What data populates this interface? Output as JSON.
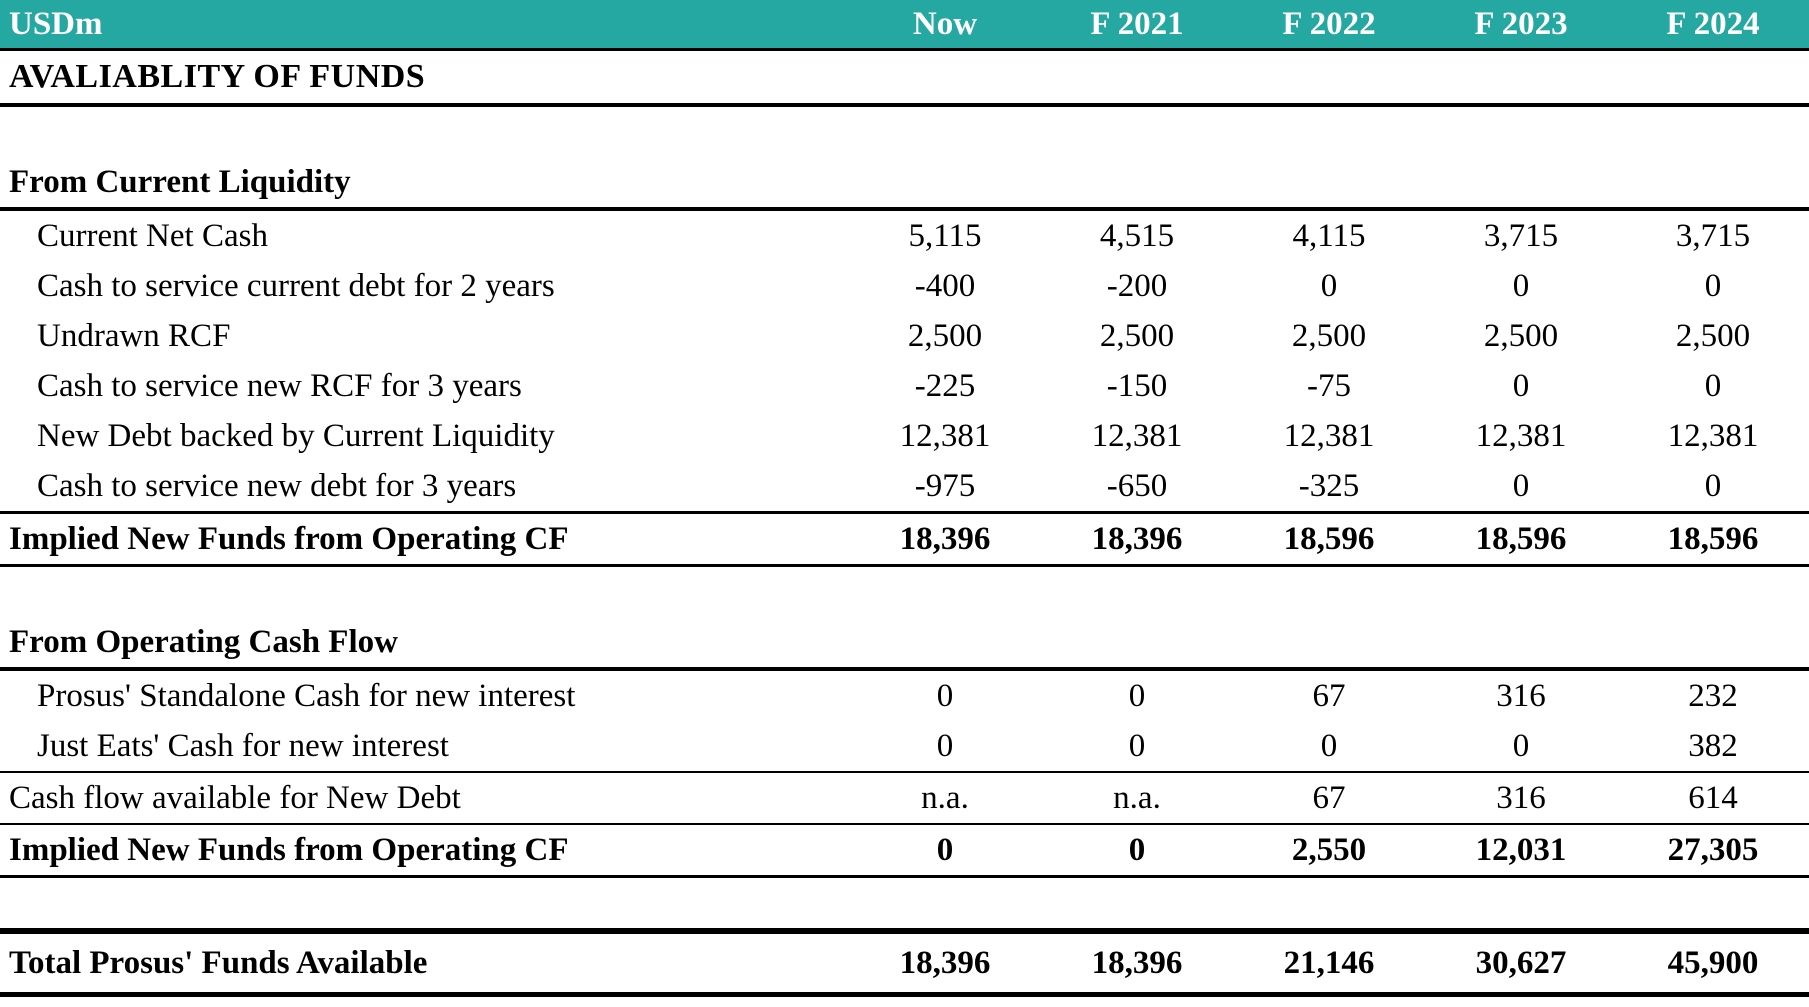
{
  "table": {
    "unit_label": "USDm",
    "columns": [
      "Now",
      "F 2021",
      "F 2022",
      "F 2023",
      "F 2024"
    ],
    "title": "AVALIABLITY OF FUNDS",
    "colors": {
      "header_bg": "#26a8a2",
      "header_text": "#ffffff",
      "body_text": "#000000",
      "border": "#000000"
    },
    "rows": [
      {
        "type": "blank"
      },
      {
        "type": "section",
        "label": "From Current Liquidity"
      },
      {
        "type": "data",
        "indent": 1,
        "label": "Current Net Cash",
        "values": [
          "5,115",
          "4,515",
          "4,115",
          "3,715",
          "3,715"
        ]
      },
      {
        "type": "data",
        "indent": 1,
        "label": "Cash to service current debt for 2 years",
        "values": [
          "-400",
          "-200",
          "0",
          "0",
          "0"
        ]
      },
      {
        "type": "data",
        "indent": 1,
        "label": "Undrawn RCF",
        "values": [
          "2,500",
          "2,500",
          "2,500",
          "2,500",
          "2,500"
        ]
      },
      {
        "type": "data",
        "indent": 1,
        "label": "Cash to service new RCF for 3 years",
        "values": [
          "-225",
          "-150",
          "-75",
          "0",
          "0"
        ]
      },
      {
        "type": "data",
        "indent": 1,
        "label": "New Debt backed by Current Liquidity",
        "values": [
          "12,381",
          "12,381",
          "12,381",
          "12,381",
          "12,381"
        ]
      },
      {
        "type": "data",
        "indent": 1,
        "label": "Cash to service new debt for 3 years",
        "values": [
          "-975",
          "-650",
          "-325",
          "0",
          "0"
        ],
        "border_bottom": "thin"
      },
      {
        "type": "subtotal",
        "label": "Implied New Funds from Operating CF",
        "values": [
          "18,396",
          "18,396",
          "18,596",
          "18,596",
          "18,596"
        ],
        "border_bottom": "thin"
      },
      {
        "type": "blank"
      },
      {
        "type": "section",
        "label": "From Operating Cash Flow"
      },
      {
        "type": "data",
        "indent": 1,
        "label": "Prosus' Standalone Cash for new interest",
        "values": [
          "0",
          "0",
          "67",
          "316",
          "232"
        ]
      },
      {
        "type": "data",
        "indent": 1,
        "label": "Just Eats' Cash for new interest",
        "values": [
          "0",
          "0",
          "0",
          "0",
          "382"
        ],
        "border_bottom": "hair"
      },
      {
        "type": "data",
        "indent": 0,
        "label": "Cash flow available for New Debt",
        "values": [
          "n.a.",
          "n.a.",
          "67",
          "316",
          "614"
        ],
        "border_bottom": "hair"
      },
      {
        "type": "subtotal",
        "label": "Implied New Funds from Operating CF",
        "values": [
          "0",
          "0",
          "2,550",
          "12,031",
          "27,305"
        ],
        "border_bottom": "thin"
      },
      {
        "type": "blank"
      },
      {
        "type": "grand_total",
        "label": "Total Prosus' Funds Available",
        "values": [
          "18,396",
          "18,396",
          "21,146",
          "30,627",
          "45,900"
        ]
      }
    ]
  }
}
